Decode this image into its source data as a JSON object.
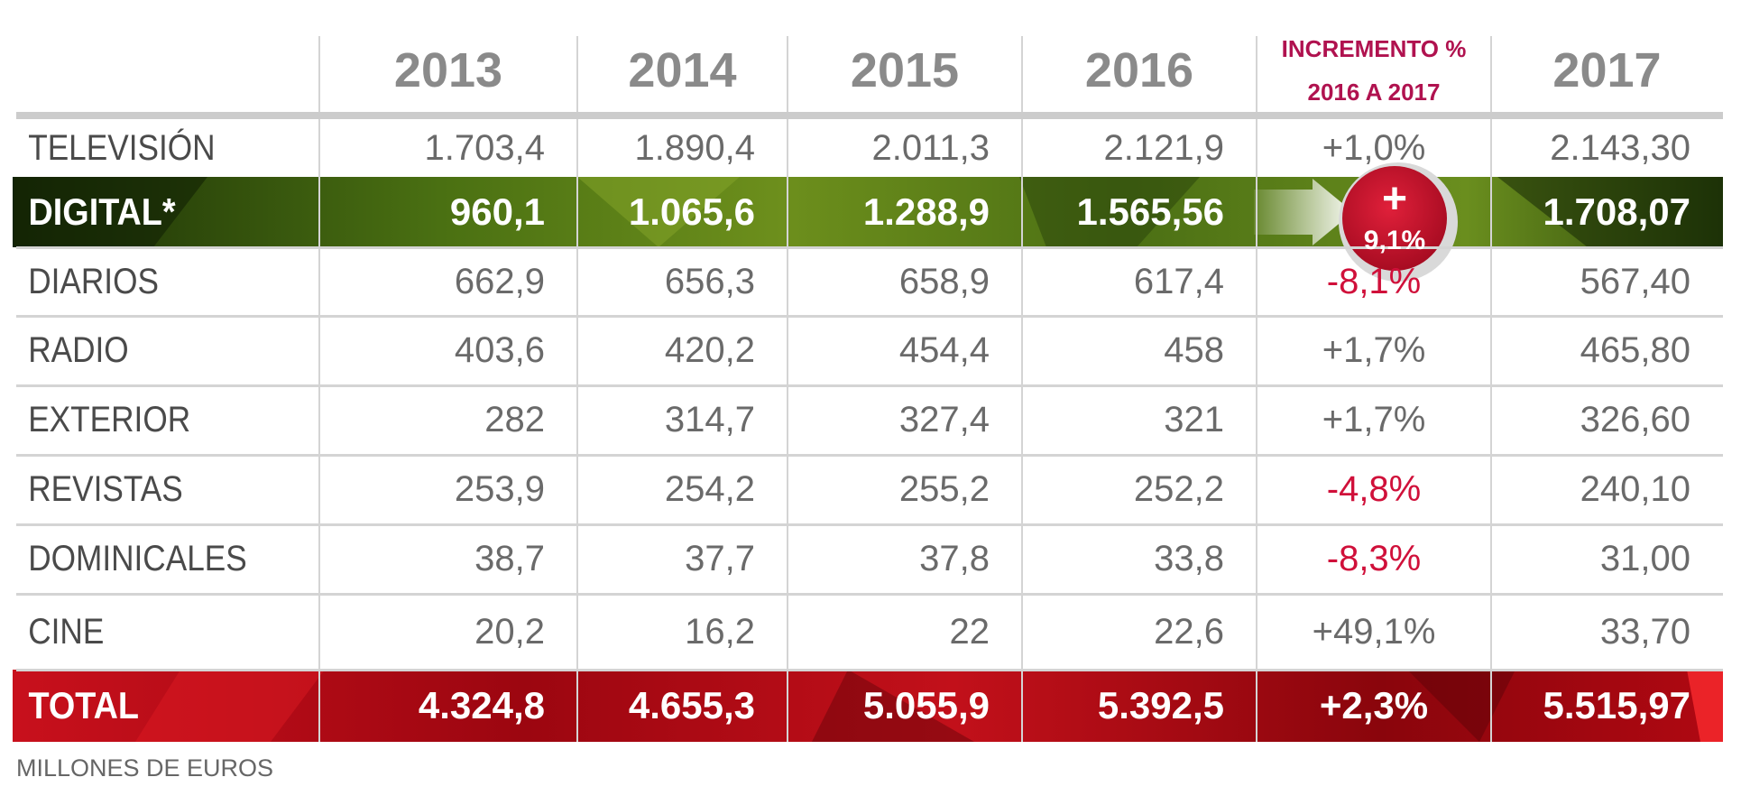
{
  "chart_data": {
    "type": "table",
    "columns": [
      "2013",
      "2014",
      "2015",
      "2016",
      "INCREMENTO %|2016 A 2017",
      "2017"
    ],
    "increment_header": [
      "INCREMENTO %",
      "2016 A 2017"
    ],
    "years": [
      "2013",
      "2014",
      "2015",
      "2016"
    ],
    "final_year": "2017",
    "rows": [
      {
        "label": "TELEVISIÓN",
        "values": [
          "1.703,4",
          "1.890,4",
          "2.011,3",
          "2.121,9"
        ],
        "increment": "+1,0%",
        "final": "2.143,30",
        "sign": "pos"
      },
      {
        "label": "DIGITAL*",
        "values": [
          "960,1",
          "1.065,6",
          "1.288,9",
          "1.565,56"
        ],
        "increment": "9,1%",
        "increment_prefix": "+",
        "final": "1.708,07",
        "sign": "pos",
        "highlight": "green"
      },
      {
        "label": "DIARIOS",
        "values": [
          "662,9",
          "656,3",
          "658,9",
          "617,4"
        ],
        "increment": "-8,1%",
        "final": "567,40",
        "sign": "neg"
      },
      {
        "label": "RADIO",
        "values": [
          "403,6",
          "420,2",
          "454,4",
          "458"
        ],
        "increment": "+1,7%",
        "final": "465,80",
        "sign": "pos"
      },
      {
        "label": "EXTERIOR",
        "values": [
          "282",
          "314,7",
          "327,4",
          "321"
        ],
        "increment": "+1,7%",
        "final": "326,60",
        "sign": "pos"
      },
      {
        "label": "REVISTAS",
        "values": [
          "253,9",
          "254,2",
          "255,2",
          "252,2"
        ],
        "increment": "-4,8%",
        "final": "240,10",
        "sign": "neg"
      },
      {
        "label": "DOMINICALES",
        "values": [
          "38,7",
          "37,7",
          "37,8",
          "33,8"
        ],
        "increment": "-8,3%",
        "final": "31,00",
        "sign": "neg"
      },
      {
        "label": "CINE",
        "values": [
          "20,2",
          "16,2",
          "22",
          "22,6"
        ],
        "increment": "+49,1%",
        "final": "33,70",
        "sign": "pos"
      }
    ],
    "total": {
      "label": "TOTAL",
      "values": [
        "4.324,8",
        "4.655,3",
        "5.055,9",
        "5.392,5"
      ],
      "increment": "+2,3%",
      "final": "5.515,97",
      "highlight": "red"
    },
    "footnote": "MILLONES DE EUROS"
  },
  "colors": {
    "header_text": "#8a8a8a",
    "increment_header": "#b0124f",
    "body_text": "#6a6a6a",
    "label_text": "#4a4a4a",
    "negative": "#d0103a",
    "digital_band": "#2c4a0c",
    "total_band": "#a8070f",
    "badge": "#c8102e",
    "grid": "#d4d4d4"
  }
}
